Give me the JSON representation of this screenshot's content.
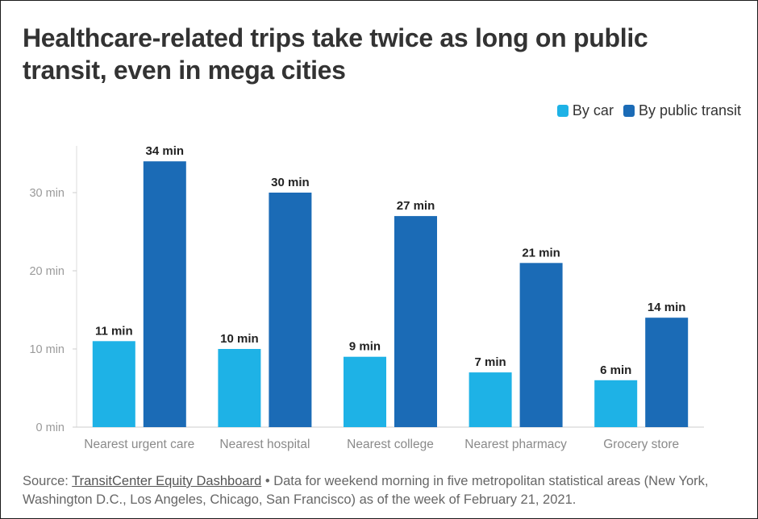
{
  "title": "Healthcare-related trips take twice as long on public transit, even in mega cities",
  "legend": [
    {
      "label": "By car",
      "color": "#1eb2e6"
    },
    {
      "label": "By public transit",
      "color": "#1b6bb6"
    }
  ],
  "chart_data": {
    "type": "bar",
    "title": "Healthcare-related trips take twice as long on public transit, even in mega cities",
    "categories": [
      "Nearest urgent care",
      "Nearest hospital",
      "Nearest college",
      "Nearest pharmacy",
      "Grocery store"
    ],
    "series": [
      {
        "name": "By car",
        "color": "#1eb2e6",
        "values": [
          11,
          10,
          9,
          7,
          6
        ],
        "labels": [
          "11 min",
          "10 min",
          "9 min",
          "7 min",
          "6 min"
        ]
      },
      {
        "name": "By public transit",
        "color": "#1b6bb6",
        "values": [
          34,
          30,
          27,
          21,
          14
        ],
        "labels": [
          "34 min",
          "30 min",
          "27 min",
          "21 min",
          "14 min"
        ]
      }
    ],
    "yticks": [
      0,
      10,
      20,
      30
    ],
    "ytick_labels": [
      "0 min",
      "10 min",
      "20 min",
      "30 min"
    ],
    "ylim": [
      0,
      36
    ],
    "grid": false,
    "legend_position": "top-right",
    "xlabel": "",
    "ylabel": ""
  },
  "source": {
    "prefix": "Source: ",
    "link_text": "TransitCenter Equity Dashboard",
    "suffix": " • Data for weekend morning in five metropolitan statistical areas (New York, Washington D.C., Los Angeles, Chicago, San Francisco) as of the week of February 21, 2021."
  }
}
